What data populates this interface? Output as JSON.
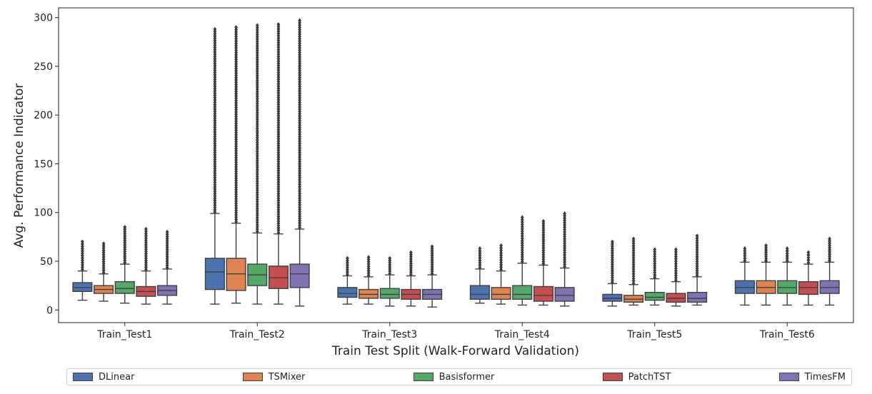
{
  "chart_data": {
    "type": "box",
    "title": "",
    "xlabel": "Train Test Split (Walk-Forward Validation)",
    "ylabel": "Avg. Performance Indicator",
    "ylim": [
      -13,
      310
    ],
    "yticks": [
      0,
      50,
      100,
      150,
      200,
      250,
      300
    ],
    "categories": [
      "Train_Test1",
      "Train_Test2",
      "Train_Test3",
      "Train_Test4",
      "Train_Test5",
      "Train_Test6"
    ],
    "series": [
      {
        "name": "DLinear",
        "color": "#4c72b0",
        "boxes": [
          {
            "wlo": 10,
            "q1": 19,
            "med": 23,
            "q3": 28,
            "whi": 40,
            "fmax": 70
          },
          {
            "wlo": 6,
            "q1": 21,
            "med": 39,
            "q3": 53,
            "whi": 99,
            "fmax": 288
          },
          {
            "wlo": 6,
            "q1": 13,
            "med": 17,
            "q3": 23,
            "whi": 35,
            "fmax": 53
          },
          {
            "wlo": 7,
            "q1": 11,
            "med": 16,
            "q3": 25,
            "whi": 42,
            "fmax": 63
          },
          {
            "wlo": 4,
            "q1": 9,
            "med": 12,
            "q3": 16,
            "whi": 27,
            "fmax": 70
          },
          {
            "wlo": 5,
            "q1": 17,
            "med": 23,
            "q3": 30,
            "whi": 49,
            "fmax": 63
          }
        ]
      },
      {
        "name": "TSMixer",
        "color": "#dd8452",
        "boxes": [
          {
            "wlo": 9,
            "q1": 17,
            "med": 21,
            "q3": 25,
            "whi": 37,
            "fmax": 68
          },
          {
            "wlo": 7,
            "q1": 20,
            "med": 37,
            "q3": 53,
            "whi": 89,
            "fmax": 290
          },
          {
            "wlo": 6,
            "q1": 12,
            "med": 16,
            "q3": 21,
            "whi": 34,
            "fmax": 54
          },
          {
            "wlo": 6,
            "q1": 11,
            "med": 16,
            "q3": 23,
            "whi": 40,
            "fmax": 66
          },
          {
            "wlo": 5,
            "q1": 8,
            "med": 11,
            "q3": 15,
            "whi": 26,
            "fmax": 73
          },
          {
            "wlo": 5,
            "q1": 17,
            "med": 23,
            "q3": 30,
            "whi": 49,
            "fmax": 66
          }
        ]
      },
      {
        "name": "Basisformer",
        "color": "#55a868",
        "boxes": [
          {
            "wlo": 7,
            "q1": 17,
            "med": 22,
            "q3": 29,
            "whi": 47,
            "fmax": 85
          },
          {
            "wlo": 6,
            "q1": 25,
            "med": 36,
            "q3": 47,
            "whi": 79,
            "fmax": 292
          },
          {
            "wlo": 4,
            "q1": 12,
            "med": 16,
            "q3": 22,
            "whi": 36,
            "fmax": 53
          },
          {
            "wlo": 5,
            "q1": 11,
            "med": 16,
            "q3": 25,
            "whi": 48,
            "fmax": 95
          },
          {
            "wlo": 5,
            "q1": 10,
            "med": 13,
            "q3": 18,
            "whi": 32,
            "fmax": 62
          },
          {
            "wlo": 5,
            "q1": 17,
            "med": 23,
            "q3": 30,
            "whi": 49,
            "fmax": 63
          }
        ]
      },
      {
        "name": "PatchTST",
        "color": "#c44e52",
        "boxes": [
          {
            "wlo": 6,
            "q1": 14,
            "med": 19,
            "q3": 24,
            "whi": 40,
            "fmax": 83
          },
          {
            "wlo": 6,
            "q1": 22,
            "med": 33,
            "q3": 45,
            "whi": 78,
            "fmax": 293
          },
          {
            "wlo": 4,
            "q1": 11,
            "med": 16,
            "q3": 21,
            "whi": 35,
            "fmax": 59
          },
          {
            "wlo": 5,
            "q1": 9,
            "med": 15,
            "q3": 24,
            "whi": 46,
            "fmax": 91
          },
          {
            "wlo": 4,
            "q1": 8,
            "med": 12,
            "q3": 17,
            "whi": 29,
            "fmax": 62
          },
          {
            "wlo": 5,
            "q1": 16,
            "med": 23,
            "q3": 29,
            "whi": 47,
            "fmax": 59
          }
        ]
      },
      {
        "name": "TimesFM",
        "color": "#8172b3",
        "boxes": [
          {
            "wlo": 6,
            "q1": 15,
            "med": 20,
            "q3": 25,
            "whi": 42,
            "fmax": 80
          },
          {
            "wlo": 4,
            "q1": 23,
            "med": 37,
            "q3": 47,
            "whi": 83,
            "fmax": 297
          },
          {
            "wlo": 3,
            "q1": 11,
            "med": 16,
            "q3": 21,
            "whi": 36,
            "fmax": 65
          },
          {
            "wlo": 4,
            "q1": 9,
            "med": 15,
            "q3": 23,
            "whi": 43,
            "fmax": 99
          },
          {
            "wlo": 5,
            "q1": 8,
            "med": 12,
            "q3": 18,
            "whi": 34,
            "fmax": 76
          },
          {
            "wlo": 5,
            "q1": 17,
            "med": 23,
            "q3": 30,
            "whi": 49,
            "fmax": 73
          }
        ]
      }
    ]
  }
}
